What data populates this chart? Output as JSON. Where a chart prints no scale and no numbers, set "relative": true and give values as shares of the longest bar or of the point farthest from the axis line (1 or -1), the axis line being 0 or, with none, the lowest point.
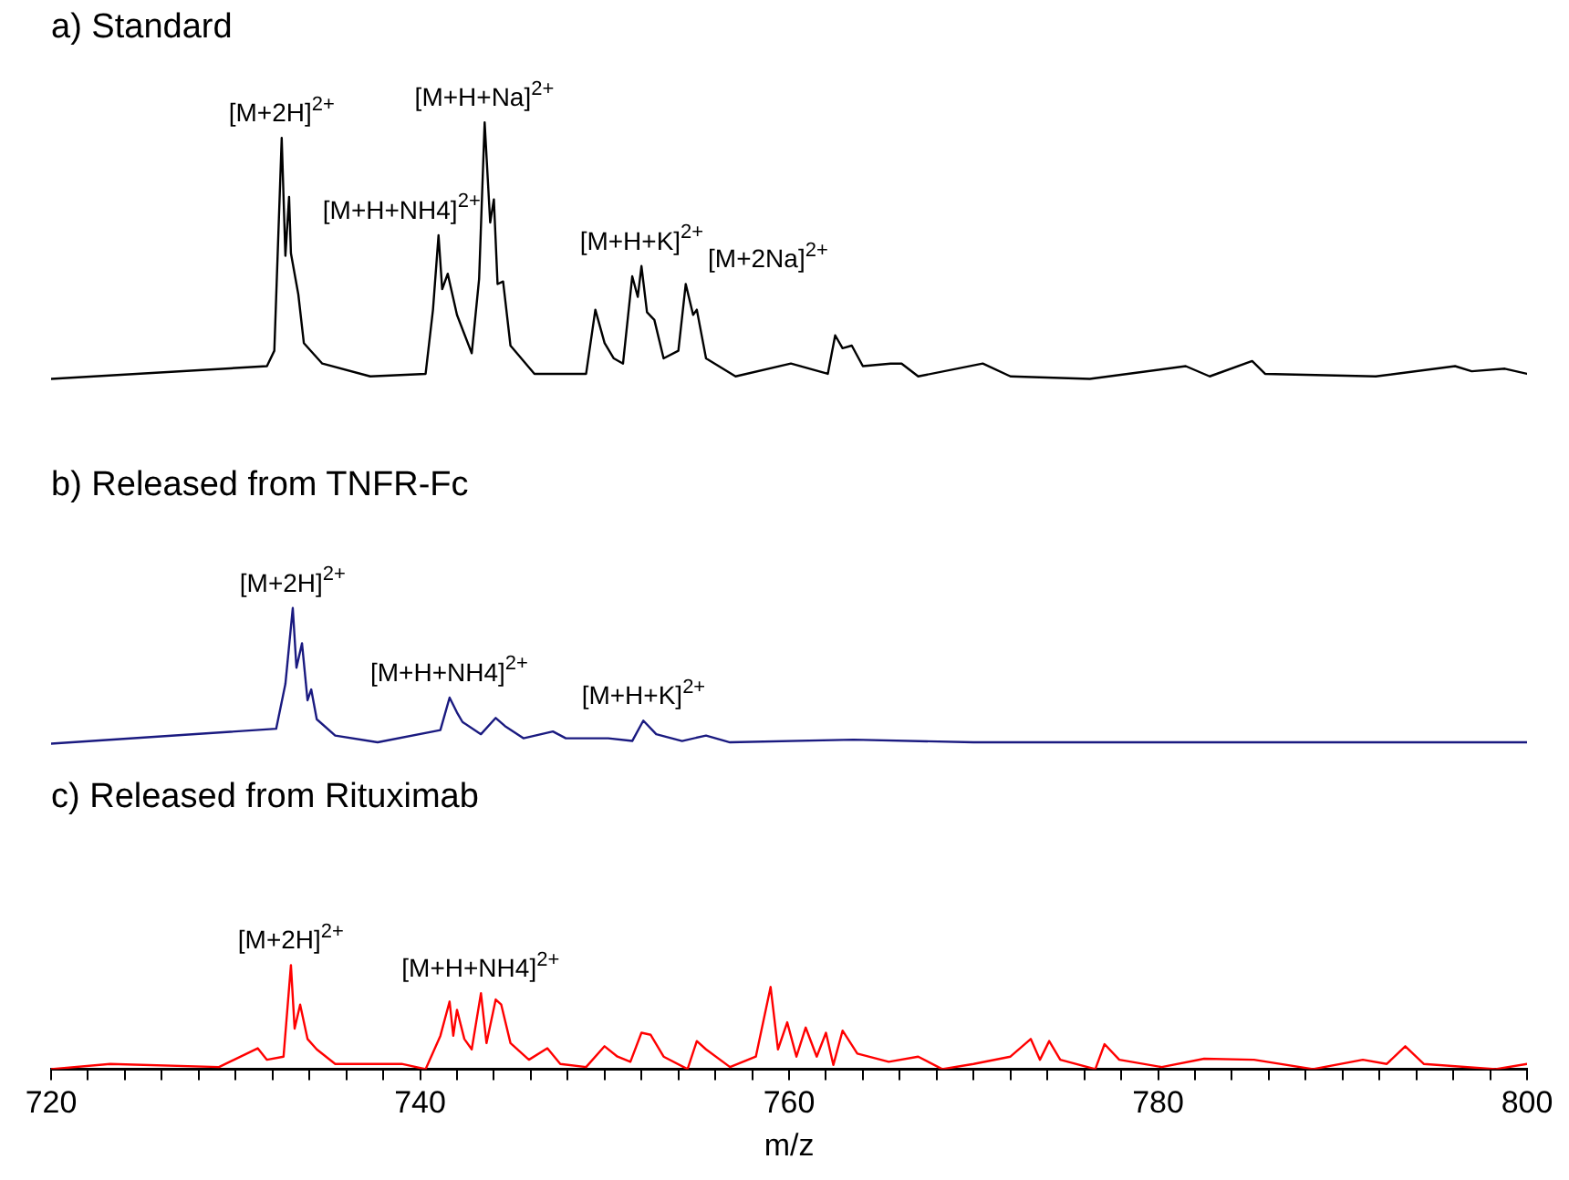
{
  "chart_data": [
    {
      "type": "line",
      "title": "a) Standard",
      "relative": true,
      "xlim": [
        720,
        800
      ],
      "tick_labels": false,
      "grid": false,
      "legend": false,
      "marker": "none",
      "line_style": "solid",
      "series": [
        {
          "color": "#000000",
          "x": [
            720,
            731.7,
            732.1,
            732.5,
            732.7,
            732.9,
            733.0,
            733.4,
            733.7,
            734.7,
            737.3,
            740.3,
            740.7,
            741.0,
            741.2,
            741.5,
            742.0,
            742.8,
            743.2,
            743.5,
            743.8,
            744.0,
            744.2,
            744.5,
            744.9,
            746.2,
            749.0,
            749.5,
            750.0,
            750.5,
            751.0,
            751.5,
            751.8,
            752.0,
            752.3,
            752.7,
            753.2,
            754.0,
            754.4,
            754.8,
            755.0,
            755.5,
            757.1,
            760.1,
            762.1,
            762.5,
            762.9,
            763.4,
            764.0,
            765.5,
            766.1,
            767.0,
            770.5,
            772.0,
            776.3,
            781.5,
            782.8,
            785.1,
            785.8,
            791.8,
            796.1,
            797.0,
            798.8,
            800
          ],
          "values": [
            0,
            0.05,
            0.11,
            0.94,
            0.48,
            0.71,
            0.49,
            0.33,
            0.14,
            0.06,
            0.01,
            0.02,
            0.27,
            0.56,
            0.35,
            0.41,
            0.25,
            0.1,
            0.39,
            1.0,
            0.61,
            0.7,
            0.37,
            0.38,
            0.13,
            0.02,
            0.02,
            0.27,
            0.14,
            0.08,
            0.06,
            0.4,
            0.32,
            0.44,
            0.26,
            0.23,
            0.08,
            0.11,
            0.37,
            0.25,
            0.27,
            0.08,
            0.01,
            0.06,
            0.02,
            0.17,
            0.12,
            0.13,
            0.05,
            0.06,
            0.06,
            0.01,
            0.06,
            0.01,
            0,
            0.05,
            0.01,
            0.07,
            0.02,
            0.01,
            0.05,
            0.03,
            0.04,
            0.02
          ]
        }
      ],
      "annotations": [
        {
          "text": "[M+2H]$^{2+}$",
          "x": 732.5,
          "y": 0.94
        },
        {
          "text": "[M+H+NH4]$^{2+}$",
          "x": 741.0,
          "y": 0.56
        },
        {
          "text": "[M+H+Na]$^{2+}$",
          "x": 743.5,
          "y": 1.0
        },
        {
          "text": "[M+H+K]$^{2+}$",
          "x": 752.0,
          "y": 0.44
        },
        {
          "text": "[M+2Na]$^{2+}$",
          "x": 754.4,
          "y": 0.37
        }
      ]
    },
    {
      "type": "line",
      "title": "b) Released from TNFR-Fc",
      "relative": true,
      "xlim": [
        720,
        800
      ],
      "tick_labels": false,
      "grid": false,
      "legend": false,
      "marker": "none",
      "line_style": "solid",
      "series": [
        {
          "color": "#1a1a80",
          "x": [
            720,
            732.2,
            732.7,
            733.1,
            733.3,
            733.6,
            733.9,
            734.1,
            734.4,
            735.4,
            737.7,
            741.1,
            741.6,
            742.0,
            742.3,
            743.3,
            744.1,
            744.6,
            745.6,
            747.2,
            747.9,
            750.2,
            751.5,
            752.1,
            752.8,
            754.2,
            755.5,
            756.8,
            763.5,
            770,
            780,
            790,
            800
          ],
          "values": [
            0,
            0.11,
            0.44,
            1.0,
            0.56,
            0.74,
            0.32,
            0.4,
            0.18,
            0.06,
            0.01,
            0.1,
            0.34,
            0.23,
            0.16,
            0.07,
            0.19,
            0.13,
            0.04,
            0.09,
            0.04,
            0.04,
            0.02,
            0.17,
            0.07,
            0.02,
            0.06,
            0.01,
            0.03,
            0.01,
            0.01,
            0.01,
            0.01
          ]
        }
      ],
      "annotations": [
        {
          "text": "[M+2H]$^{2+}$",
          "x": 733.1,
          "y": 1.0
        },
        {
          "text": "[M+H+NH4]$^{2+}$",
          "x": 741.6,
          "y": 0.34
        },
        {
          "text": "[M+H+K]$^{2+}$",
          "x": 752.1,
          "y": 0.17
        }
      ]
    },
    {
      "type": "line",
      "title": "c) Released from Rituximab",
      "relative": true,
      "xlim": [
        720,
        800
      ],
      "xlabel": "m/z",
      "tick_labels": "x",
      "grid": false,
      "legend": false,
      "marker": "none",
      "line_style": "solid",
      "xticks": [
        720,
        {
          "value": 722,
          "label": null
        },
        {
          "value": 724,
          "label": null
        },
        {
          "value": 726,
          "label": null
        },
        {
          "value": 728,
          "label": null
        },
        {
          "value": 730,
          "label": null
        },
        {
          "value": 732,
          "label": null
        },
        {
          "value": 734,
          "label": null
        },
        {
          "value": 736,
          "label": null
        },
        {
          "value": 738,
          "label": null
        },
        740,
        {
          "value": 742,
          "label": null
        },
        {
          "value": 744,
          "label": null
        },
        {
          "value": 746,
          "label": null
        },
        {
          "value": 748,
          "label": null
        },
        {
          "value": 750,
          "label": null
        },
        {
          "value": 752,
          "label": null
        },
        {
          "value": 754,
          "label": null
        },
        {
          "value": 756,
          "label": null
        },
        {
          "value": 758,
          "label": null
        },
        760,
        {
          "value": 762,
          "label": null
        },
        {
          "value": 764,
          "label": null
        },
        {
          "value": 766,
          "label": null
        },
        {
          "value": 768,
          "label": null
        },
        {
          "value": 770,
          "label": null
        },
        {
          "value": 772,
          "label": null
        },
        {
          "value": 774,
          "label": null
        },
        {
          "value": 776,
          "label": null
        },
        {
          "value": 778,
          "label": null
        },
        780,
        {
          "value": 782,
          "label": null
        },
        {
          "value": 784,
          "label": null
        },
        {
          "value": 786,
          "label": null
        },
        {
          "value": 788,
          "label": null
        },
        {
          "value": 790,
          "label": null
        },
        {
          "value": 792,
          "label": null
        },
        {
          "value": 794,
          "label": null
        },
        {
          "value": 796,
          "label": null
        },
        {
          "value": 798,
          "label": null
        },
        800
      ],
      "series": [
        {
          "color": "#ff0000",
          "x": [
            720,
            723.2,
            729.1,
            731.2,
            731.7,
            732.6,
            733.0,
            733.2,
            733.5,
            733.9,
            734.4,
            735.4,
            739.0,
            740.3,
            741.1,
            741.6,
            741.8,
            742.0,
            742.4,
            742.8,
            743.3,
            743.6,
            744.1,
            744.4,
            744.9,
            745.9,
            746.9,
            747.6,
            749.0,
            750.0,
            750.7,
            751.4,
            752.0,
            752.5,
            753.2,
            754.5,
            755.0,
            755.5,
            756.8,
            758.2,
            759.0,
            759.4,
            759.9,
            760.4,
            760.9,
            761.5,
            762.0,
            762.4,
            762.9,
            763.7,
            765.4,
            767.0,
            768.3,
            770.0,
            772.0,
            773.1,
            773.6,
            774.1,
            774.7,
            776.6,
            777.1,
            777.9,
            780.2,
            782.5,
            785.2,
            788.4,
            791.1,
            792.4,
            793.4,
            794.4,
            798.3,
            800
          ],
          "values": [
            0,
            0.05,
            0.02,
            0.2,
            0.09,
            0.12,
            1.0,
            0.39,
            0.62,
            0.29,
            0.19,
            0.05,
            0.05,
            0,
            0.32,
            0.65,
            0.32,
            0.57,
            0.29,
            0.19,
            0.73,
            0.25,
            0.67,
            0.62,
            0.25,
            0.09,
            0.2,
            0.05,
            0.02,
            0.22,
            0.12,
            0.07,
            0.35,
            0.33,
            0.12,
            0,
            0.27,
            0.19,
            0.02,
            0.12,
            0.79,
            0.19,
            0.45,
            0.12,
            0.4,
            0.12,
            0.35,
            0.04,
            0.37,
            0.15,
            0.07,
            0.12,
            0,
            0.05,
            0.12,
            0.29,
            0.09,
            0.27,
            0.09,
            0,
            0.24,
            0.09,
            0.02,
            0.1,
            0.09,
            0,
            0.09,
            0.05,
            0.22,
            0.05,
            0,
            0.05
          ]
        }
      ],
      "annotations": [
        {
          "text": "[M+2H]$^{2+}$",
          "x": 733.0,
          "y": 1.0
        },
        {
          "text": "[M+H+NH4]$^{2+}$",
          "x": 743.3,
          "y": 0.73
        }
      ]
    }
  ]
}
